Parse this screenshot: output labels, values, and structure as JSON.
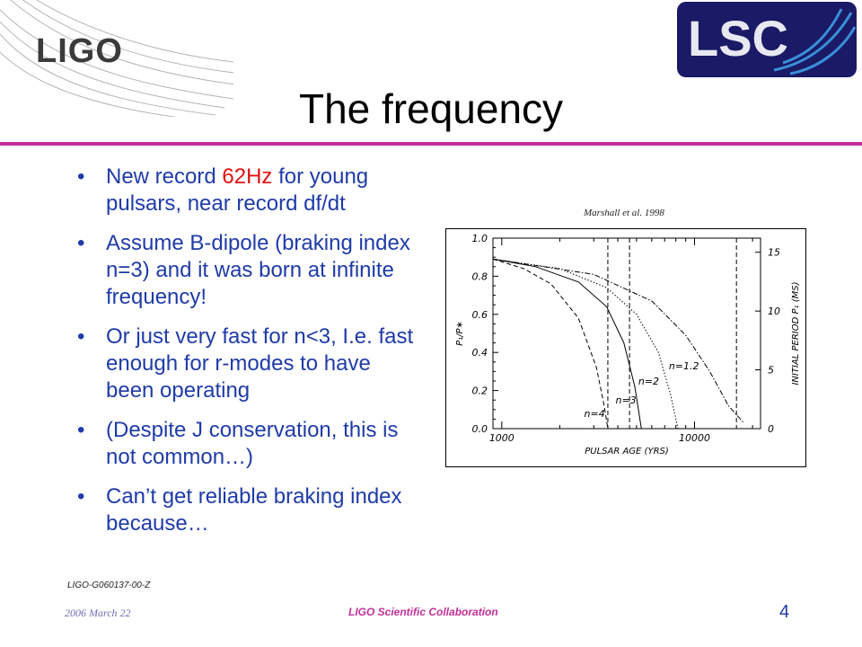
{
  "header": {
    "ligo_logo_text": "LIGO",
    "lsc_logo_text": "LSC"
  },
  "title": "The frequency",
  "bullets": [
    {
      "pre": "New record ",
      "highlight": "62Hz",
      "post": " for young pulsars, near record df/dt"
    },
    {
      "pre": "Assume B-dipole (braking index n=3) and it was born at infinite frequency!",
      "highlight": "",
      "post": ""
    },
    {
      "pre": "Or just very fast for n<3, I.e. fast enough for r-modes to have been operating",
      "highlight": "",
      "post": ""
    },
    {
      "pre": "(Despite J conservation, this is not common…)",
      "highlight": "",
      "post": ""
    },
    {
      "pre": "Can’t get reliable braking index because…",
      "highlight": "",
      "post": ""
    }
  ],
  "figure": {
    "credit": "Marshall et al. 1998",
    "x_label": "PULSAR AGE (YRS)",
    "y_label_left": "P₁/P∗",
    "y_label_right": "INITIAL PERIOD P₁ (MS)",
    "x_ticks": [
      "1000",
      "10000"
    ],
    "y_ticks_left": [
      "0.0",
      "0.2",
      "0.4",
      "0.6",
      "0.8",
      "1.0"
    ],
    "y_ticks_right": [
      "0",
      "5",
      "10",
      "15"
    ],
    "curve_labels": [
      "n=4",
      "n=3",
      "n=2",
      "n=1.2"
    ]
  },
  "chart_data": {
    "type": "line",
    "title": "",
    "xlabel": "PULSAR AGE (YRS)",
    "ylabel": "P₁/P∗",
    "y2label": "INITIAL PERIOD P₁ (MS)",
    "x_scale": "log",
    "xlim": [
      900,
      22000
    ],
    "ylim": [
      0,
      1.0
    ],
    "y2lim": [
      0,
      16.2
    ],
    "series": [
      {
        "name": "n=4",
        "style": "dashed",
        "x": [
          900,
          1300,
          1800,
          2500,
          3100,
          3400,
          3550
        ],
        "y": [
          0.89,
          0.84,
          0.76,
          0.58,
          0.32,
          0.12,
          0.0
        ]
      },
      {
        "name": "n=3",
        "style": "solid",
        "x": [
          900,
          1500,
          2500,
          3500,
          4300,
          4900,
          5300
        ],
        "y": [
          0.89,
          0.85,
          0.77,
          0.64,
          0.45,
          0.22,
          0.0
        ]
      },
      {
        "name": "n=2",
        "style": "dotted",
        "x": [
          900,
          2000,
          3500,
          5000,
          6500,
          7500,
          8200
        ],
        "y": [
          0.89,
          0.84,
          0.74,
          0.6,
          0.4,
          0.18,
          0.0
        ]
      },
      {
        "name": "n=1.2",
        "style": "dashdot",
        "x": [
          900,
          3000,
          6000,
          9000,
          12000,
          15000,
          18000
        ],
        "y": [
          0.89,
          0.81,
          0.67,
          0.49,
          0.3,
          0.12,
          0.03
        ]
      }
    ],
    "vertical_lines": [
      {
        "x": 3550,
        "style": "dashed"
      },
      {
        "x": 4600,
        "style": "dashed"
      },
      {
        "x": 16500,
        "style": "dashed"
      }
    ]
  },
  "footer": {
    "doc_id": "LIGO-G060137-00-Z",
    "date": "2006 March 22",
    "collaboration": "LIGO Scientific Collaboration",
    "page_number": "4"
  },
  "colors": {
    "title_rule": "#c0309c",
    "bullet_text": "#1f3ba8",
    "highlight": "#e01010",
    "lsc_background": "#1a1a66",
    "lsc_wave": "#3a8fd8"
  }
}
